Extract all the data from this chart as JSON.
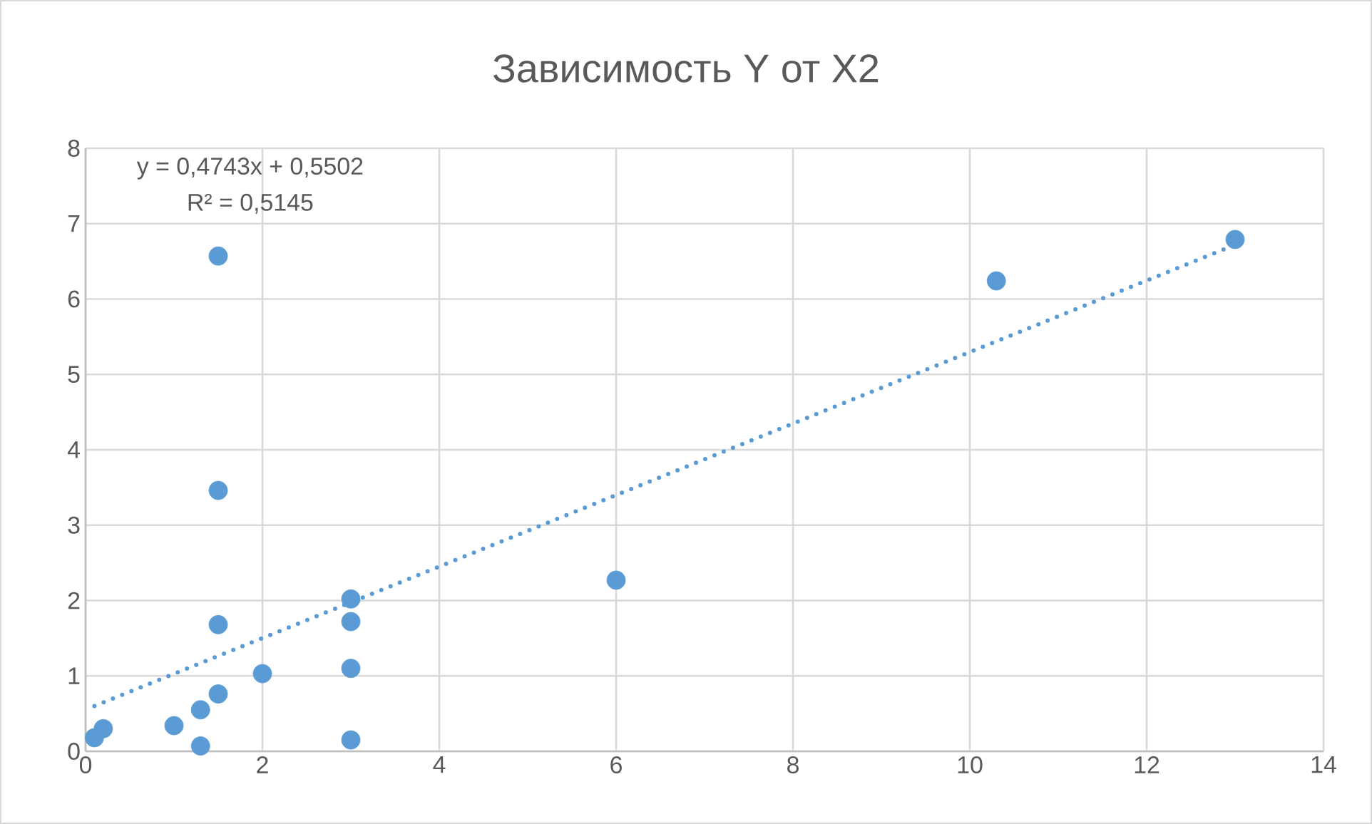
{
  "chart_data": {
    "type": "scatter",
    "title": "Зависимость Y от X2",
    "series": [
      {
        "color": "#5b9bd5",
        "marker": "circle",
        "x": [
          0.1,
          0.2,
          1.0,
          1.3,
          1.3,
          1.5,
          1.5,
          1.5,
          1.5,
          2.0,
          3.0,
          3.0,
          3.0,
          3.0,
          6.0,
          10.3,
          13.0
        ],
        "values": [
          0.18,
          0.3,
          0.34,
          0.55,
          0.07,
          6.57,
          3.46,
          1.68,
          0.76,
          1.03,
          2.02,
          1.72,
          1.1,
          0.15,
          2.27,
          6.24,
          6.79
        ]
      },
      {
        "type": "line",
        "color": "#5b9bd5",
        "marker": "none",
        "line_style": "dotted",
        "x": [
          0.1,
          13.0
        ],
        "values": [
          0.6,
          6.72
        ]
      }
    ],
    "annotations": [
      "y = 0,4743x + 0,5502",
      "R² = 0,5145"
    ],
    "xlim": [
      0,
      14
    ],
    "ylim": [
      0,
      8
    ],
    "xticks": [
      0,
      2,
      4,
      6,
      8,
      10,
      12,
      14
    ],
    "yticks": [
      0,
      1,
      2,
      3,
      4,
      5,
      6,
      7,
      8
    ],
    "grid": true
  }
}
